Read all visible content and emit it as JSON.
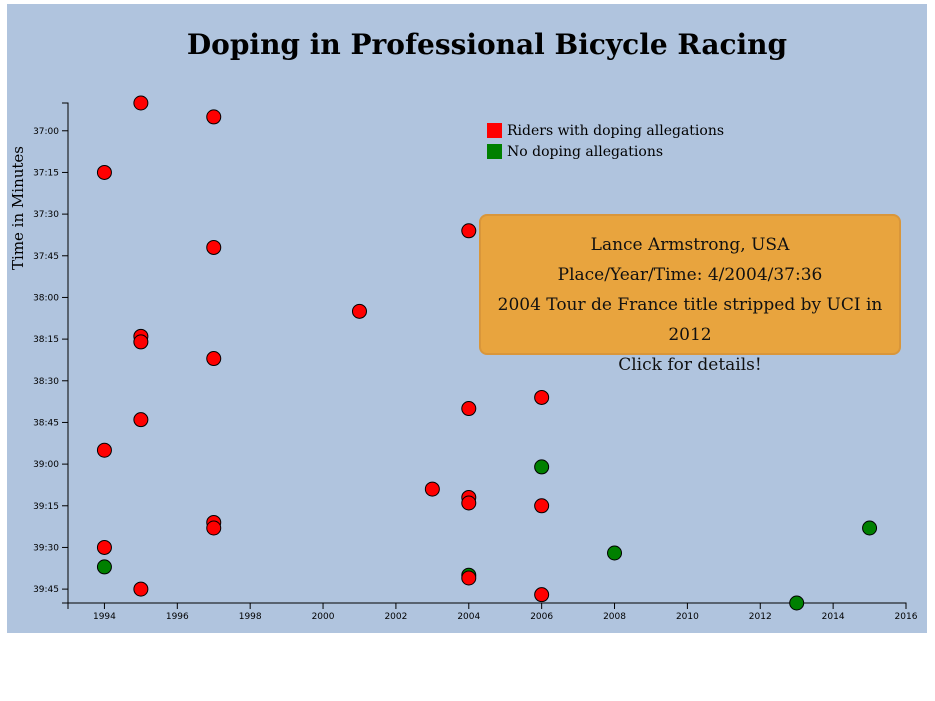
{
  "chart_data": {
    "type": "scatter",
    "title": "Doping in Professional Bicycle Racing",
    "ylabel": "Time in Minutes",
    "xlabel": "",
    "xlim": [
      1993,
      2016
    ],
    "ylim_seconds": [
      2210,
      2390
    ],
    "x_ticks": [
      1994,
      1996,
      1998,
      2000,
      2002,
      2004,
      2006,
      2008,
      2010,
      2012,
      2014,
      2016
    ],
    "y_ticks": [
      "37:00",
      "37:15",
      "37:30",
      "37:45",
      "38:00",
      "38:15",
      "38:30",
      "38:45",
      "39:00",
      "39:15",
      "39:30",
      "39:45"
    ],
    "legend": {
      "position": "top-center",
      "entries": [
        {
          "label": "Riders with doping allegations",
          "color": "#ff0000"
        },
        {
          "label": "No doping allegations",
          "color": "#008000"
        }
      ]
    },
    "points": [
      {
        "year": 1995,
        "time": "36:50",
        "doping": true
      },
      {
        "year": 1997,
        "time": "36:55",
        "doping": true
      },
      {
        "year": 1994,
        "time": "37:15",
        "doping": true
      },
      {
        "year": 2004,
        "time": "37:36",
        "doping": true
      },
      {
        "year": 1997,
        "time": "37:42",
        "doping": true
      },
      {
        "year": 2001,
        "time": "38:05",
        "doping": true
      },
      {
        "year": 1995,
        "time": "38:14",
        "doping": true
      },
      {
        "year": 1995,
        "time": "38:16",
        "doping": true
      },
      {
        "year": 1997,
        "time": "38:22",
        "doping": true
      },
      {
        "year": 2006,
        "time": "38:36",
        "doping": true
      },
      {
        "year": 2004,
        "time": "38:40",
        "doping": true
      },
      {
        "year": 1995,
        "time": "38:44",
        "doping": true
      },
      {
        "year": 1994,
        "time": "38:55",
        "doping": true
      },
      {
        "year": 2006,
        "time": "39:01",
        "doping": false
      },
      {
        "year": 2003,
        "time": "39:09",
        "doping": true
      },
      {
        "year": 2004,
        "time": "39:12",
        "doping": true
      },
      {
        "year": 2004,
        "time": "39:14",
        "doping": true
      },
      {
        "year": 2006,
        "time": "39:15",
        "doping": true
      },
      {
        "year": 1997,
        "time": "39:21",
        "doping": true
      },
      {
        "year": 1997,
        "time": "39:23",
        "doping": true
      },
      {
        "year": 2015,
        "time": "39:23",
        "doping": false
      },
      {
        "year": 1994,
        "time": "39:30",
        "doping": true
      },
      {
        "year": 2008,
        "time": "39:32",
        "doping": false
      },
      {
        "year": 1994,
        "time": "39:37",
        "doping": false
      },
      {
        "year": 2004,
        "time": "39:40",
        "doping": false
      },
      {
        "year": 2004,
        "time": "39:41",
        "doping": true
      },
      {
        "year": 1995,
        "time": "39:45",
        "doping": true
      },
      {
        "year": 2006,
        "time": "39:47",
        "doping": true
      },
      {
        "year": 2013,
        "time": "39:50",
        "doping": false
      }
    ]
  },
  "tooltip": {
    "name_line": "Lance Armstrong, USA",
    "stats_line": "Place/Year/Time: 4/2004/37:36",
    "doping_line": "2004 Tour de France title stripped by UCI in 2012",
    "cta_line": "Click for details!"
  }
}
